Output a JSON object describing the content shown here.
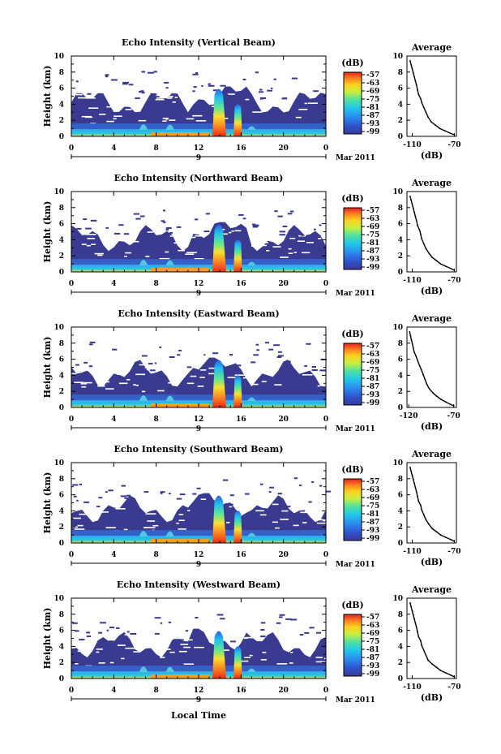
{
  "chart_data": [
    {
      "type": "heatmap",
      "title": "Echo Intensity (Vertical Beam)",
      "ylabel": "Height (km)",
      "x_ticks": [
        "0",
        "4",
        "8",
        "12",
        "16",
        "20",
        "0"
      ],
      "y_ticks": [
        "0",
        "2",
        "4",
        "6",
        "8",
        "10"
      ],
      "xlim": [
        0,
        24
      ],
      "ylim": [
        0,
        10
      ],
      "date_labels": [
        "9",
        "Mar 2011"
      ],
      "colorbar": {
        "unit": "(dB)",
        "ticks": [
          "-57",
          "-63",
          "-69",
          "-75",
          "-81",
          "-87",
          "-93",
          "-99"
        ]
      },
      "average_profile": {
        "title": "Average",
        "xlabel": "(dB)",
        "x_ticks": [
          "-110",
          "-70"
        ],
        "y_ticks": [
          "0",
          "2",
          "4",
          "6",
          "8",
          "10"
        ],
        "xlim": [
          -115,
          -68
        ],
        "ylim": [
          0,
          10
        ],
        "x": [
          -70,
          -74,
          -79,
          -84,
          -88,
          -92,
          -95,
          -97,
          -99,
          -101,
          -102,
          -104,
          -105,
          -106,
          -107,
          -108,
          -109,
          -110,
          -111,
          -112
        ],
        "y": [
          0.2,
          0.4,
          0.7,
          1.0,
          1.4,
          1.8,
          2.4,
          3.0,
          3.6,
          4.2,
          4.7,
          5.2,
          5.8,
          6.4,
          6.9,
          7.4,
          7.9,
          8.4,
          8.9,
          9.4
        ]
      }
    },
    {
      "type": "heatmap",
      "title": "Echo Intensity (Northward Beam)",
      "ylabel": "Height (km)",
      "x_ticks": [
        "0",
        "4",
        "8",
        "12",
        "16",
        "20",
        "0"
      ],
      "y_ticks": [
        "0",
        "2",
        "4",
        "6",
        "8",
        "10"
      ],
      "xlim": [
        0,
        24
      ],
      "ylim": [
        0,
        10
      ],
      "date_labels": [
        "9",
        "Mar 2011"
      ],
      "colorbar": {
        "unit": "(dB)",
        "ticks": [
          "-57",
          "-63",
          "-69",
          "-75",
          "-81",
          "-87",
          "-93",
          "-99"
        ]
      },
      "average_profile": {
        "title": "Average",
        "xlabel": "(dB)",
        "x_ticks": [
          "-110",
          "-70"
        ],
        "y_ticks": [
          "0",
          "2",
          "4",
          "6",
          "8",
          "10"
        ],
        "xlim": [
          -115,
          -68
        ],
        "ylim": [
          0,
          10
        ],
        "x": [
          -70,
          -73,
          -78,
          -83,
          -87,
          -91,
          -94,
          -97,
          -99,
          -101,
          -102,
          -103,
          -105,
          -106,
          -107,
          -108,
          -109,
          -110,
          -111,
          -112
        ],
        "y": [
          0.2,
          0.4,
          0.7,
          1.0,
          1.4,
          1.8,
          2.3,
          2.9,
          3.5,
          4.1,
          4.7,
          5.2,
          5.8,
          6.4,
          6.9,
          7.4,
          7.9,
          8.4,
          8.9,
          9.4
        ]
      }
    },
    {
      "type": "heatmap",
      "title": "Echo Intensity (Eastward Beam)",
      "ylabel": "Height (km)",
      "x_ticks": [
        "0",
        "4",
        "8",
        "12",
        "16",
        "20",
        "0"
      ],
      "y_ticks": [
        "0",
        "2",
        "4",
        "6",
        "8",
        "10"
      ],
      "xlim": [
        0,
        24
      ],
      "ylim": [
        0,
        10
      ],
      "date_labels": [
        "9",
        "Mar 2011"
      ],
      "colorbar": {
        "unit": "(dB)",
        "ticks": [
          "-57",
          "-63",
          "-69",
          "-75",
          "-81",
          "-87",
          "-93",
          "-99"
        ]
      },
      "average_profile": {
        "title": "Average",
        "xlabel": "(dB)",
        "x_ticks": [
          "-120",
          "-70"
        ],
        "y_ticks": [
          "0",
          "2",
          "4",
          "6",
          "8",
          "10"
        ],
        "xlim": [
          -122,
          -67
        ],
        "ylim": [
          0,
          10
        ],
        "x": [
          -70,
          -74,
          -79,
          -84,
          -89,
          -93,
          -97,
          -100,
          -102,
          -104,
          -106,
          -108,
          -110,
          -112,
          -114,
          -115,
          -116,
          -117,
          -118,
          -119
        ],
        "y": [
          0.2,
          0.4,
          0.7,
          1.0,
          1.4,
          1.8,
          2.3,
          2.9,
          3.5,
          4.1,
          4.7,
          5.2,
          5.8,
          6.4,
          6.9,
          7.4,
          7.9,
          8.4,
          8.9,
          9.4
        ]
      }
    },
    {
      "type": "heatmap",
      "title": "Echo Intensity (Southward Beam)",
      "ylabel": "Height (km)",
      "x_ticks": [
        "0",
        "4",
        "8",
        "12",
        "16",
        "20",
        "0"
      ],
      "y_ticks": [
        "0",
        "2",
        "4",
        "6",
        "8",
        "10"
      ],
      "xlim": [
        0,
        24
      ],
      "ylim": [
        0,
        10
      ],
      "date_labels": [
        "9",
        "Mar 2011"
      ],
      "colorbar": {
        "unit": "(dB)",
        "ticks": [
          "-57",
          "-63",
          "-69",
          "-75",
          "-81",
          "-87",
          "-93",
          "-99"
        ]
      },
      "average_profile": {
        "title": "Average",
        "xlabel": "(dB)",
        "x_ticks": [
          "-110",
          "-70"
        ],
        "y_ticks": [
          "0",
          "2",
          "4",
          "6",
          "8",
          "10"
        ],
        "xlim": [
          -115,
          -68
        ],
        "ylim": [
          0,
          10
        ],
        "x": [
          -70,
          -73,
          -78,
          -83,
          -87,
          -91,
          -94,
          -97,
          -99,
          -101,
          -102,
          -104,
          -105,
          -106,
          -107,
          -108,
          -109,
          -110,
          -111,
          -112
        ],
        "y": [
          0.2,
          0.4,
          0.7,
          1.0,
          1.4,
          1.8,
          2.3,
          2.9,
          3.5,
          4.1,
          4.7,
          5.2,
          5.8,
          6.4,
          6.9,
          7.4,
          7.9,
          8.4,
          8.9,
          9.4
        ]
      }
    },
    {
      "type": "heatmap",
      "title": "Echo Intensity (Westward Beam)",
      "ylabel": "Height (km)",
      "xlabel": "Local Time",
      "x_ticks": [
        "0",
        "4",
        "8",
        "12",
        "16",
        "20",
        "0"
      ],
      "y_ticks": [
        "0",
        "2",
        "4",
        "6",
        "8",
        "10"
      ],
      "xlim": [
        0,
        24
      ],
      "ylim": [
        0,
        10
      ],
      "date_labels": [
        "9",
        "Mar 2011"
      ],
      "colorbar": {
        "unit": "(dB)",
        "ticks": [
          "-57",
          "-63",
          "-69",
          "-75",
          "-81",
          "-87",
          "-93",
          "-99"
        ]
      },
      "average_profile": {
        "title": "Average",
        "xlabel": "(dB)",
        "x_ticks": [
          "-110",
          "-70"
        ],
        "y_ticks": [
          "0",
          "2",
          "4",
          "6",
          "8",
          "10"
        ],
        "xlim": [
          -115,
          -68
        ],
        "ylim": [
          0,
          10
        ],
        "x": [
          -70,
          -73,
          -78,
          -83,
          -87,
          -91,
          -95,
          -97,
          -99,
          -101,
          -102,
          -104,
          -105,
          -106,
          -107,
          -108,
          -109,
          -110,
          -111,
          -112
        ],
        "y": [
          0.2,
          0.4,
          0.7,
          1.0,
          1.4,
          1.8,
          2.3,
          2.9,
          3.5,
          4.1,
          4.7,
          5.2,
          5.8,
          6.4,
          6.9,
          7.4,
          7.9,
          8.4,
          8.9,
          9.4
        ]
      }
    }
  ]
}
